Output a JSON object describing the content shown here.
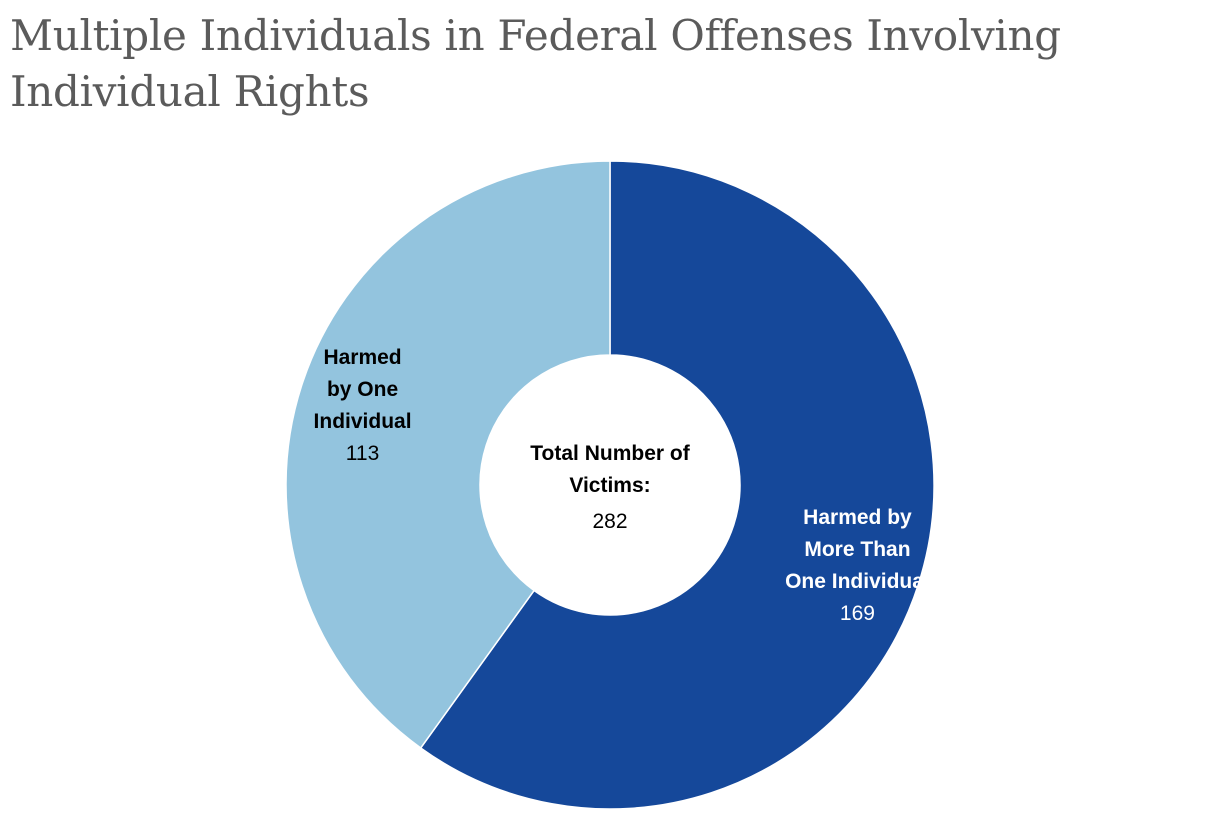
{
  "chart_data": {
    "type": "pie",
    "variant": "donut",
    "title": "Multiple Individuals in Federal Offenses Involving Individual Rights",
    "categories": [
      "Harmed by More Than One Individual",
      "Harmed by One Individual"
    ],
    "values": [
      169,
      113
    ],
    "label_lines": [
      [
        "Harmed by",
        "More Than",
        "One Individual"
      ],
      [
        "Harmed",
        "by One",
        "Individual"
      ]
    ],
    "colors": [
      "#15489a",
      "#93c4de"
    ],
    "label_colors": [
      "#ffffff",
      "#000000"
    ],
    "center": {
      "label_lines": [
        "Total Number of",
        "Victims:"
      ],
      "value": "282"
    },
    "legend": "none"
  }
}
